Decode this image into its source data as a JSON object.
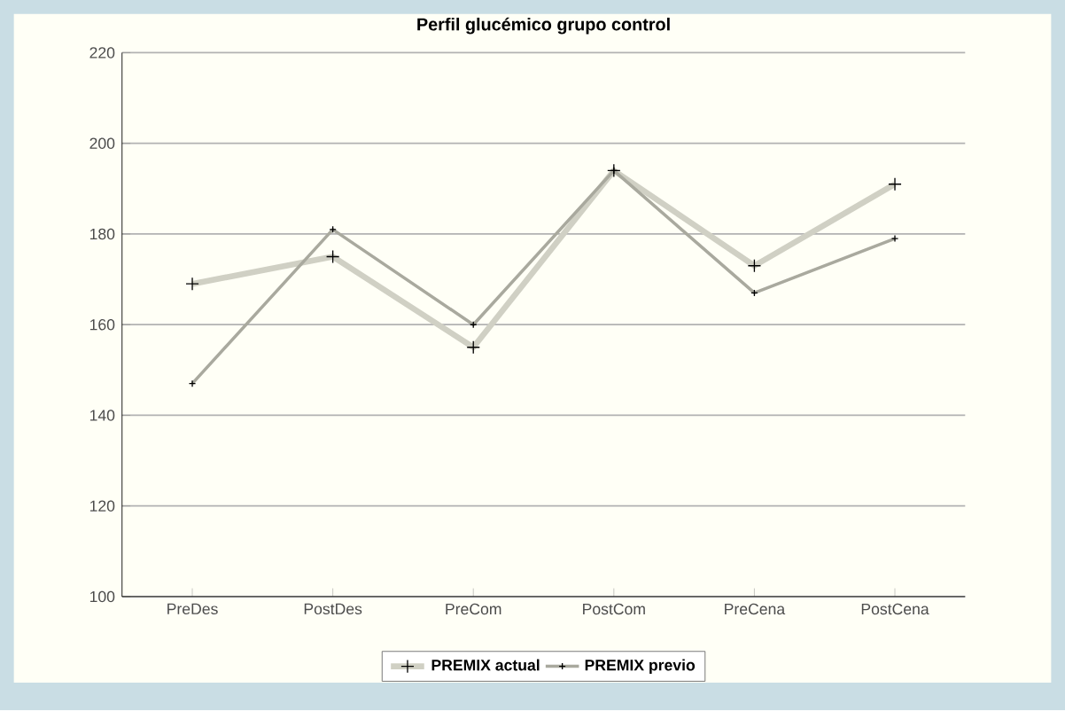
{
  "chart_data": {
    "type": "line",
    "title": "Perfil glucémico grupo control",
    "categories": [
      "PreDes",
      "PostDes",
      "PreCom",
      "PostCom",
      "PreCena",
      "PostCena"
    ],
    "series": [
      {
        "name": "PREMIX actual",
        "color": "#d0d0c4",
        "values": [
          169,
          175,
          155,
          194,
          173,
          191
        ]
      },
      {
        "name": "PREMIX previo",
        "color": "#a9a99e",
        "values": [
          147,
          181,
          160,
          194,
          167,
          179
        ]
      }
    ],
    "ylim": [
      100,
      220
    ],
    "yticks": [
      100,
      120,
      140,
      160,
      180,
      200,
      220
    ],
    "grid": "y",
    "legend": "bottom",
    "marker": "cross"
  }
}
